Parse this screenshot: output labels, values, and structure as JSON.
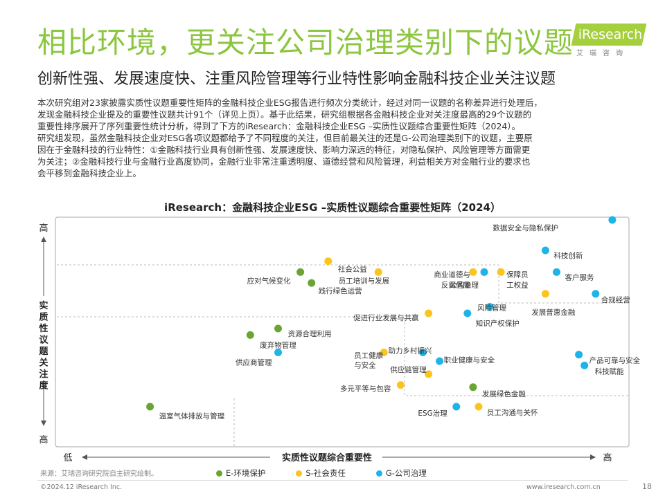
{
  "header": {
    "title": "相比环境，更关注公司治理类别下的议题",
    "subtitle": "创新性强、发展速度快、注重风险管理等行业特性影响金融科技企业关注议题"
  },
  "logo": {
    "brand": "iResearch",
    "sub": "艾瑞咨询"
  },
  "body_lines": [
    "本次研究组对23家披露实质性议题重要性矩阵的金融科技企业ESG报告进行频次分类统计，经过对同一议题的名称差异进行处理后，",
    "发现金融科技企业提及的重要性议题共计91个（详见上页）。基于此结果，研究组根据各金融科技企业对关注度最高的29个议题的",
    "重要性排序展开了序列重要性统计分析，得到了下方的iResearch：金融科技企业ESG –实质性议题综合重要性矩阵（2024）。",
    "研究组发现，虽然金融科技企业对ESG各项议题都给予了不同程度的关注，但目前最关注的还是G-公司治理类别下的议题，主要原",
    "因在于金融科技的行业特性：①金融科技行业具有创新性强、发展速度快、影响力深远的特征，对隐私保护、风险管理等方面需更",
    "为关注；②金融科技行业与金融行业高度协同，金融行业非常注重透明度、道德经营和风险管理，利益相关方对金融行业的要求也",
    "会平移到金融科技企业上。"
  ],
  "chart_data": {
    "type": "scatter",
    "title": "iResearch：金融科技企业ESG –实质性议题综合重要性矩阵（2024）",
    "xlabel": "实质性议题综合重要性",
    "ylabel": "实质性议题关注度",
    "x_low": "低",
    "x_high": "高",
    "y_low": "高",
    "y_high": "高",
    "xlim": [
      0,
      100
    ],
    "ylim": [
      0,
      100
    ],
    "grid": false,
    "legend_position": "bottom",
    "colors": {
      "E": "#6aa532",
      "S": "#fbc51f",
      "G": "#1fb4e8"
    },
    "series": [
      {
        "name": "E-环境保护",
        "key": "E"
      },
      {
        "name": "S-社会责任",
        "key": "S"
      },
      {
        "name": "G-公司治理",
        "key": "G"
      }
    ],
    "points": [
      {
        "label": "数据安全与隐私保护",
        "cat": "G",
        "x": 97,
        "y": 100
      },
      {
        "label": "科技创新",
        "cat": "G",
        "x": 85,
        "y": 86
      },
      {
        "label": "客户服务",
        "cat": "G",
        "x": 87,
        "y": 76
      },
      {
        "label": "合规经营",
        "cat": "G",
        "x": 94,
        "y": 66
      },
      {
        "label": "发展普惠金融",
        "cat": "S",
        "x": 85,
        "y": 66
      },
      {
        "label": "社会公益",
        "cat": "S",
        "x": 46,
        "y": 81
      },
      {
        "label": "应对气候变化",
        "cat": "E",
        "x": 41,
        "y": 76
      },
      {
        "label": "员工培训与发展",
        "cat": "S",
        "x": 55,
        "y": 76
      },
      {
        "label": "商业道德与反腐倡廉",
        "cat": "S",
        "x": 72,
        "y": 76
      },
      {
        "label": "公司治理",
        "cat": "G",
        "x": 74,
        "y": 76
      },
      {
        "label": "保障员工权益",
        "cat": "S",
        "x": 77,
        "y": 76
      },
      {
        "label": "践行绿色运营",
        "cat": "E",
        "x": 43,
        "y": 71
      },
      {
        "label": "风险管理",
        "cat": "G",
        "x": 75,
        "y": 60
      },
      {
        "label": "知识产权保护",
        "cat": "G",
        "x": 71,
        "y": 57
      },
      {
        "label": "促进行业发展与共赢",
        "cat": "S",
        "x": 64,
        "y": 57
      },
      {
        "label": "资源合理利用",
        "cat": "E",
        "x": 37,
        "y": 50
      },
      {
        "label": "废弃物管理",
        "cat": "E",
        "x": 32,
        "y": 47
      },
      {
        "label": "供应商管理",
        "cat": "G",
        "x": 37,
        "y": 39
      },
      {
        "label": "员工健康与安全",
        "cat": "S",
        "x": 56,
        "y": 39
      },
      {
        "label": "助力乡村振兴",
        "cat": "G",
        "x": 63,
        "y": 39
      },
      {
        "label": "职业健康与安全",
        "cat": "G",
        "x": 66,
        "y": 35
      },
      {
        "label": "供应链管理",
        "cat": "S",
        "x": 64,
        "y": 29
      },
      {
        "label": "多元平等与包容",
        "cat": "S",
        "x": 59,
        "y": 24
      },
      {
        "label": "发展绿色金融",
        "cat": "E",
        "x": 72,
        "y": 23
      },
      {
        "label": "ESG治理",
        "cat": "G",
        "x": 69,
        "y": 14
      },
      {
        "label": "员工沟通与关怀",
        "cat": "S",
        "x": 73,
        "y": 14
      },
      {
        "label": "产品可靠与安全",
        "cat": "G",
        "x": 91,
        "y": 38
      },
      {
        "label": "科技赋能",
        "cat": "G",
        "x": 92,
        "y": 33
      },
      {
        "label": "温室气体排放与管理",
        "cat": "E",
        "x": 14,
        "y": 14
      }
    ]
  },
  "footer": {
    "source": "来源：艾瑞咨询研究院自主研究绘制。",
    "copyright": "©2024.12 iResearch Inc.",
    "website": "www.iresearch.com.cn",
    "page": "18"
  }
}
